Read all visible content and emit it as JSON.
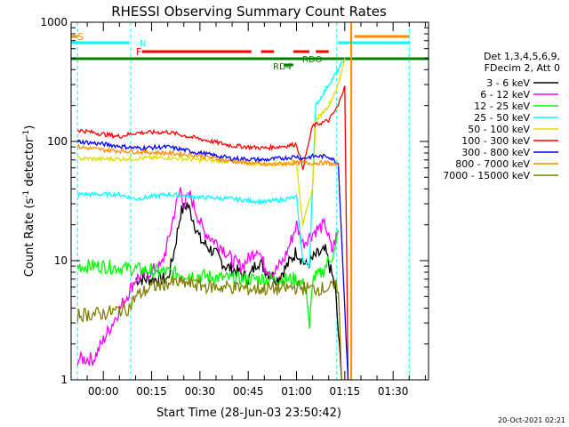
{
  "chart_data": {
    "type": "line",
    "title": "RHESSI Observing Summary Count Rates",
    "xlabel": "Start Time (28-Jun-03 23:50:42)",
    "ylabel_main": "Count Rate (s",
    "ylabel_sup1": "-1",
    "ylabel_mid": " detector",
    "ylabel_sup2": "-1",
    "ylabel_end": ")",
    "yscale": "log",
    "ylim": [
      1,
      1000
    ],
    "xlim_minutes": [
      -10,
      101
    ],
    "x_ticks": [
      {
        "m": 0,
        "label": "00:00"
      },
      {
        "m": 15,
        "label": "00:15"
      },
      {
        "m": 30,
        "label": "00:30"
      },
      {
        "m": 45,
        "label": "00:45"
      },
      {
        "m": 60,
        "label": "01:00"
      },
      {
        "m": 75,
        "label": "01:15"
      },
      {
        "m": 90,
        "label": "01:30"
      }
    ],
    "y_ticks": [
      {
        "v": 1,
        "label": "1"
      },
      {
        "v": 10,
        "label": "10"
      },
      {
        "v": 100,
        "label": "100"
      },
      {
        "v": 1000,
        "label": "1000"
      }
    ],
    "legend_header": [
      "Det 1,3,4,5,6,9,",
      "FDecim 2, Att 0"
    ],
    "timestamp": "20-Oct-2021 02:21",
    "flag_labels": {
      "S": "S",
      "N": "N",
      "F": "F",
      "RDO": "RDO",
      "RD4": "RD4"
    },
    "colors": {
      "3-6": "#000000",
      "6-12": "#ff00ff",
      "12-25": "#00ff00",
      "25-50": "#00ffff",
      "50-100": "#dddd00",
      "100-300": "#ff0000",
      "300-800": "#0000ff",
      "800-7000": "#ff8800",
      "7000-15000": "#808000",
      "saa": "#ff8800",
      "night": "#00ffff",
      "flare": "#ff0000",
      "decim": "#008000"
    },
    "series": [
      {
        "name": "3 - 6 keV",
        "key": "3-6",
        "points": [
          [
            10,
            7
          ],
          [
            20,
            7
          ],
          [
            22,
            12
          ],
          [
            24,
            25
          ],
          [
            26,
            30
          ],
          [
            28,
            22
          ],
          [
            30,
            15
          ],
          [
            34,
            12
          ],
          [
            38,
            9
          ],
          [
            42,
            8
          ],
          [
            45,
            7
          ],
          [
            48,
            10
          ],
          [
            51,
            8
          ],
          [
            54,
            7
          ],
          [
            57,
            9
          ],
          [
            60,
            12
          ],
          [
            63,
            9
          ],
          [
            66,
            11
          ],
          [
            69,
            12
          ],
          [
            72,
            6
          ],
          [
            74,
            1
          ]
        ]
      },
      {
        "name": "6 - 12 keV",
        "key": "6-12",
        "points": [
          [
            -8,
            1.5
          ],
          [
            -3,
            1.5
          ],
          [
            10,
            7
          ],
          [
            18,
            9
          ],
          [
            20,
            14
          ],
          [
            22,
            25
          ],
          [
            24,
            40
          ],
          [
            25,
            30
          ],
          [
            27,
            35
          ],
          [
            29,
            25
          ],
          [
            31,
            18
          ],
          [
            34,
            15
          ],
          [
            37,
            13
          ],
          [
            40,
            10
          ],
          [
            43,
            9
          ],
          [
            46,
            11
          ],
          [
            48,
            13
          ],
          [
            50,
            9
          ],
          [
            53,
            8
          ],
          [
            56,
            10
          ],
          [
            58,
            14
          ],
          [
            60,
            20
          ],
          [
            62,
            14
          ],
          [
            64,
            16
          ],
          [
            66,
            18
          ],
          [
            69,
            20
          ],
          [
            71,
            12
          ],
          [
            73,
            18
          ]
        ]
      },
      {
        "name": "12 - 25 keV",
        "key": "12-25",
        "points": [
          [
            -8,
            9
          ],
          [
            0,
            9
          ],
          [
            10,
            8.5
          ],
          [
            20,
            8
          ],
          [
            30,
            7.5
          ],
          [
            40,
            7
          ],
          [
            50,
            7
          ],
          [
            60,
            7
          ],
          [
            63,
            6
          ],
          [
            64,
            2.5
          ],
          [
            65,
            7
          ],
          [
            68,
            8
          ],
          [
            70,
            10
          ],
          [
            72,
            12
          ],
          [
            73,
            18
          ]
        ]
      },
      {
        "name": "25 - 50 keV",
        "key": "25-50",
        "points": [
          [
            -8,
            36
          ],
          [
            5,
            36
          ],
          [
            10,
            33
          ],
          [
            20,
            36
          ],
          [
            30,
            34
          ],
          [
            40,
            33
          ],
          [
            50,
            31
          ],
          [
            57,
            33
          ],
          [
            60,
            34
          ],
          [
            62,
            10
          ],
          [
            64,
            9
          ],
          [
            66,
            200
          ],
          [
            70,
            300
          ],
          [
            73,
            400
          ],
          [
            75,
            500
          ]
        ]
      },
      {
        "name": "50 - 100 keV",
        "key": "50-100",
        "points": [
          [
            -8,
            72
          ],
          [
            0,
            71
          ],
          [
            10,
            72
          ],
          [
            20,
            73
          ],
          [
            30,
            70
          ],
          [
            40,
            68
          ],
          [
            50,
            64
          ],
          [
            57,
            66
          ],
          [
            60,
            68
          ],
          [
            62,
            20
          ],
          [
            65,
            40
          ],
          [
            66,
            150
          ],
          [
            70,
            200
          ],
          [
            73,
            300
          ],
          [
            75,
            500
          ]
        ]
      },
      {
        "name": "100 - 300 keV",
        "key": "100-300",
        "points": [
          [
            -8,
            125
          ],
          [
            0,
            115
          ],
          [
            5,
            110
          ],
          [
            10,
            118
          ],
          [
            20,
            120
          ],
          [
            30,
            105
          ],
          [
            40,
            92
          ],
          [
            50,
            88
          ],
          [
            57,
            92
          ],
          [
            60,
            95
          ],
          [
            62,
            60
          ],
          [
            65,
            135
          ],
          [
            70,
            150
          ],
          [
            73,
            200
          ],
          [
            75,
            300
          ],
          [
            76,
            1
          ]
        ]
      },
      {
        "name": "300 - 800 keV",
        "key": "300-800",
        "points": [
          [
            -8,
            100
          ],
          [
            0,
            95
          ],
          [
            10,
            88
          ],
          [
            20,
            90
          ],
          [
            30,
            80
          ],
          [
            40,
            72
          ],
          [
            50,
            70
          ],
          [
            57,
            73
          ],
          [
            60,
            75
          ],
          [
            62,
            72
          ],
          [
            65,
            75
          ],
          [
            70,
            75
          ],
          [
            73,
            65
          ],
          [
            76,
            1
          ]
        ]
      },
      {
        "name": "800 - 7000 keV",
        "key": "800-7000",
        "points": [
          [
            -8,
            90
          ],
          [
            0,
            85
          ],
          [
            10,
            82
          ],
          [
            20,
            80
          ],
          [
            30,
            76
          ],
          [
            40,
            68
          ],
          [
            50,
            64
          ],
          [
            57,
            65
          ],
          [
            60,
            66
          ],
          [
            65,
            66
          ],
          [
            70,
            66
          ],
          [
            73,
            62
          ]
        ]
      },
      {
        "name": "7000 - 15000 keV",
        "key": "7000-15000",
        "points": [
          [
            -8,
            3.5
          ],
          [
            0,
            3.6
          ],
          [
            8,
            4
          ],
          [
            10,
            5
          ],
          [
            15,
            6
          ],
          [
            20,
            6.5
          ],
          [
            25,
            6.5
          ],
          [
            30,
            6.2
          ],
          [
            35,
            6
          ],
          [
            40,
            6
          ],
          [
            45,
            5.8
          ],
          [
            50,
            5.8
          ],
          [
            55,
            5.8
          ],
          [
            60,
            6
          ],
          [
            65,
            5.8
          ],
          [
            70,
            5.9
          ],
          [
            73,
            6
          ],
          [
            74,
            1
          ]
        ]
      }
    ],
    "flags": {
      "saa": [
        {
          "start": -10,
          "end": -8
        },
        {
          "start": 78,
          "end": 95
        }
      ],
      "night": [
        {
          "start": -10,
          "end": 8
        },
        {
          "start": 73,
          "end": 95
        }
      ],
      "flare": [
        {
          "start": 12,
          "end": 46
        },
        {
          "start": 49,
          "end": 53
        },
        {
          "start": 59,
          "end": 64
        },
        {
          "start": 66,
          "end": 70
        }
      ],
      "decim": [
        {
          "start": -10,
          "end": 101
        }
      ],
      "rd4": [
        {
          "start": 56,
          "end": 59
        }
      ]
    },
    "vlines": [
      {
        "m": -8,
        "color": "#00ffff"
      },
      {
        "m": 8.5,
        "color": "#00ffff"
      },
      {
        "m": 72.5,
        "color": "#00ffff"
      },
      {
        "m": 95,
        "color": "#00ffff"
      },
      {
        "m": 77,
        "color": "#ff8800"
      }
    ]
  }
}
